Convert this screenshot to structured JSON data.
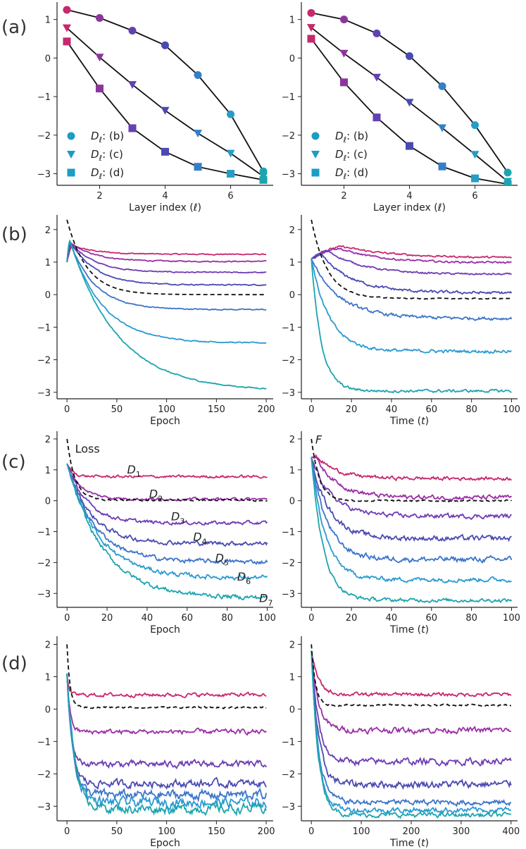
{
  "colors": {
    "D1": "#c8286c",
    "D2": "#9a2ea6",
    "D3": "#6e3cb4",
    "D4": "#4a4ab2",
    "D5": "#3c74c8",
    "D6": "#2a9ad2",
    "D7": "#1ca4b0",
    "loss": "#111111"
  },
  "row_labels": [
    "(a)",
    "(b)",
    "(c)",
    "(d)"
  ],
  "chart_data": [
    {
      "id": "a-left",
      "type": "scatter+line",
      "xlabel": "Layer index (ℓ)",
      "xticks": [
        2,
        4,
        6
      ],
      "xlim": [
        0.7,
        7.3
      ],
      "yticks": [
        1,
        0,
        -1,
        -2,
        -3
      ],
      "ylim": [
        -3.3,
        1.45
      ],
      "legend": {
        "position": "lower-left",
        "entries": [
          "D_ℓ: (b)",
          "D_ℓ: (c)",
          "D_ℓ: (d)"
        ]
      },
      "series": [
        {
          "name": "D_ℓ: (b)",
          "marker": "circle",
          "x": [
            1,
            2,
            3,
            4,
            5,
            6,
            7
          ],
          "y": [
            1.25,
            1.04,
            0.71,
            0.33,
            -0.44,
            -1.46,
            -2.94
          ]
        },
        {
          "name": "D_ℓ: (c)",
          "marker": "triangle",
          "x": [
            1,
            2,
            3,
            4,
            5,
            6,
            7
          ],
          "y": [
            0.78,
            0.02,
            -0.69,
            -1.36,
            -1.95,
            -2.47,
            -3.07
          ]
        },
        {
          "name": "D_ℓ: (d)",
          "marker": "square",
          "x": [
            1,
            2,
            3,
            4,
            5,
            6,
            7
          ],
          "y": [
            0.43,
            -0.79,
            -1.82,
            -2.43,
            -2.82,
            -3.0,
            -3.16
          ]
        }
      ]
    },
    {
      "id": "a-right",
      "type": "scatter+line",
      "xlabel": "Layer index (ℓ)",
      "xticks": [
        2,
        4,
        6
      ],
      "xlim": [
        0.7,
        7.3
      ],
      "yticks": [
        1,
        0,
        -1,
        -2,
        -3
      ],
      "ylim": [
        -3.3,
        1.45
      ],
      "legend": {
        "position": "lower-left",
        "entries": [
          "D_ℓ: (b)",
          "D_ℓ: (c)",
          "D_ℓ: (d)"
        ]
      },
      "series": [
        {
          "name": "D_ℓ: (b)",
          "marker": "circle",
          "x": [
            1,
            2,
            3,
            4,
            5,
            6,
            7
          ],
          "y": [
            1.17,
            1.0,
            0.64,
            0.05,
            -0.73,
            -1.74,
            -2.97
          ]
        },
        {
          "name": "D_ℓ: (c)",
          "marker": "triangle",
          "x": [
            1,
            2,
            3,
            4,
            5,
            6,
            7
          ],
          "y": [
            0.79,
            0.12,
            -0.5,
            -1.15,
            -1.81,
            -2.5,
            -3.2
          ]
        },
        {
          "name": "D_ℓ: (d)",
          "marker": "square",
          "x": [
            1,
            2,
            3,
            4,
            5,
            6,
            7
          ],
          "y": [
            0.5,
            -0.63,
            -1.54,
            -2.28,
            -2.81,
            -3.12,
            -3.27
          ]
        }
      ]
    },
    {
      "id": "b-left",
      "type": "line",
      "xlabel": "Epoch",
      "xticks": [
        0,
        50,
        100,
        150,
        200
      ],
      "xlim": [
        -10,
        207
      ],
      "yticks": [
        2,
        1,
        0,
        -1,
        -2,
        -3
      ],
      "ylim": [
        -3.2,
        2.45
      ],
      "series": [
        {
          "name": "D1",
          "start": 1.0,
          "peak": 1.5,
          "peakx": 6,
          "final": 1.24,
          "tau": 25,
          "noise": 0.012
        },
        {
          "name": "D2",
          "start": 1.0,
          "peak": 1.55,
          "peakx": 5,
          "final": 1.02,
          "tau": 25,
          "noise": 0.012
        },
        {
          "name": "D3",
          "start": 1.0,
          "peak": 1.58,
          "peakx": 4,
          "final": 0.68,
          "tau": 25,
          "noise": 0.012
        },
        {
          "name": "D4",
          "start": 1.0,
          "peak": 1.6,
          "peakx": 4,
          "final": 0.3,
          "tau": 25,
          "noise": 0.012
        },
        {
          "name": "D5",
          "start": 1.0,
          "peak": 1.62,
          "peakx": 3,
          "final": -0.46,
          "tau": 25,
          "noise": 0.012
        },
        {
          "name": "D6",
          "start": 1.0,
          "peak": 1.64,
          "peakx": 3,
          "final": -1.49,
          "tau": 33,
          "noise": 0.012
        },
        {
          "name": "D7",
          "start": 1.0,
          "peak": 1.66,
          "peakx": 3,
          "final": -2.96,
          "tau": 48,
          "noise": 0.012
        },
        {
          "name": "Loss",
          "dashed": true,
          "start": 2.3,
          "final": 0.0,
          "tau": 20,
          "noise": 0.0
        }
      ]
    },
    {
      "id": "b-right",
      "type": "line",
      "xlabel": "Time (t)",
      "xticks": [
        0,
        20,
        40,
        60,
        80,
        100
      ],
      "xlim": [
        -5,
        103
      ],
      "yticks": [
        2,
        1,
        0,
        -1,
        -2,
        -3
      ],
      "ylim": [
        -3.2,
        2.45
      ],
      "series": [
        {
          "name": "D1",
          "start": 1.1,
          "peak": 1.47,
          "peakx": 16,
          "final": 1.13,
          "tau": 25,
          "noise": 0.02
        },
        {
          "name": "D2",
          "start": 1.1,
          "peak": 1.42,
          "peakx": 14,
          "final": 0.98,
          "tau": 20,
          "noise": 0.02
        },
        {
          "name": "D3",
          "start": 1.1,
          "peak": 1.35,
          "peakx": 8,
          "final": 0.62,
          "tau": 18,
          "noise": 0.02
        },
        {
          "name": "D4",
          "start": 1.1,
          "peak": 1.2,
          "peakx": 5,
          "final": 0.05,
          "tau": 16,
          "noise": 0.03
        },
        {
          "name": "D5",
          "start": 1.1,
          "peak": 1.1,
          "peakx": 0,
          "final": -0.73,
          "tau": 14,
          "noise": 0.035
        },
        {
          "name": "D6",
          "start": 1.1,
          "peak": 1.1,
          "peakx": 0,
          "final": -1.74,
          "tau": 9,
          "noise": 0.035
        },
        {
          "name": "D7",
          "start": 1.1,
          "peak": 1.1,
          "peakx": 0,
          "final": -2.96,
          "tau": 5,
          "noise": 0.03
        },
        {
          "name": "Loss",
          "dashed": true,
          "start": 2.3,
          "final": -0.12,
          "tau": 8,
          "noise": 0.01
        }
      ]
    },
    {
      "id": "c-left",
      "type": "line",
      "xlabel": "Epoch",
      "xticks": [
        0,
        20,
        40,
        60,
        80,
        100
      ],
      "xlim": [
        -5,
        103
      ],
      "yticks": [
        2,
        1,
        0,
        -1,
        -2,
        -3
      ],
      "ylim": [
        -3.45,
        2.25
      ],
      "annotations": [
        {
          "text": "Loss",
          "x": 4,
          "y": 1.55
        },
        {
          "text": "D_1",
          "x": 30,
          "y": 0.88
        },
        {
          "text": "D_2",
          "x": 41,
          "y": 0.1
        },
        {
          "text": "D_3",
          "x": 52,
          "y": -0.63
        },
        {
          "text": "D_4",
          "x": 63,
          "y": -1.3
        },
        {
          "text": "D_5",
          "x": 74,
          "y": -1.98
        },
        {
          "text": "D_6",
          "x": 85,
          "y": -2.58
        },
        {
          "text": "D_7",
          "x": 96,
          "y": -3.28
        }
      ],
      "series": [
        {
          "name": "D1",
          "start": 1.2,
          "final": 0.78,
          "tau": 3,
          "noise": 0.03
        },
        {
          "name": "D2",
          "start": 1.2,
          "final": 0.05,
          "tau": 7,
          "noise": 0.03
        },
        {
          "name": "D3",
          "start": 1.2,
          "final": -0.72,
          "tau": 10,
          "noise": 0.04
        },
        {
          "name": "D4",
          "start": 1.2,
          "final": -1.38,
          "tau": 12,
          "noise": 0.05
        },
        {
          "name": "D5",
          "start": 1.2,
          "final": -1.98,
          "tau": 14,
          "noise": 0.05
        },
        {
          "name": "D6",
          "start": 1.2,
          "final": -2.5,
          "tau": 16,
          "noise": 0.05
        },
        {
          "name": "D7",
          "start": 1.2,
          "final": -3.15,
          "tau": 18,
          "noise": 0.05
        },
        {
          "name": "Loss",
          "dashed": true,
          "start": 2.0,
          "final": 0.02,
          "tau": 4,
          "noise": 0.02
        }
      ]
    },
    {
      "id": "c-right",
      "type": "line",
      "xlabel": "Time (t)",
      "xticks": [
        0,
        20,
        40,
        60,
        80,
        100
      ],
      "xlim": [
        -5,
        103
      ],
      "yticks": [
        2,
        1,
        0,
        -1,
        -2,
        -3
      ],
      "ylim": [
        -3.45,
        2.25
      ],
      "annotations": [
        {
          "text": "F",
          "x": 2,
          "y": 1.85
        }
      ],
      "series": [
        {
          "name": "D1",
          "start": 1.4,
          "peak": 1.42,
          "peakx": 3,
          "final": 0.72,
          "tau": 10,
          "noise": 0.04
        },
        {
          "name": "D2",
          "start": 1.4,
          "peak": 1.42,
          "peakx": 2,
          "final": 0.1,
          "tau": 11,
          "noise": 0.05
        },
        {
          "name": "D3",
          "start": 1.4,
          "final": -0.5,
          "tau": 10,
          "noise": 0.05
        },
        {
          "name": "D4",
          "start": 1.4,
          "final": -1.22,
          "tau": 9,
          "noise": 0.06
        },
        {
          "name": "D5",
          "start": 1.4,
          "final": -1.9,
          "tau": 8,
          "noise": 0.06
        },
        {
          "name": "D6",
          "start": 1.4,
          "final": -2.55,
          "tau": 7,
          "noise": 0.05
        },
        {
          "name": "D7",
          "start": 1.4,
          "final": -3.22,
          "tau": 6,
          "noise": 0.04
        },
        {
          "name": "Loss",
          "dashed": true,
          "start": 2.0,
          "final": 0.0,
          "tau": 4,
          "noise": 0.02
        }
      ]
    },
    {
      "id": "d-left",
      "type": "line",
      "xlabel": "Epoch",
      "xticks": [
        0,
        50,
        100,
        150,
        200
      ],
      "xlim": [
        -10,
        207
      ],
      "yticks": [
        2,
        1,
        0,
        -1,
        -2,
        -3
      ],
      "ylim": [
        -3.45,
        2.25
      ],
      "series": [
        {
          "name": "D1",
          "start": 1.1,
          "final": 0.44,
          "tau": 2,
          "noise": 0.04
        },
        {
          "name": "D2",
          "start": 1.1,
          "final": -0.7,
          "tau": 3,
          "noise": 0.05
        },
        {
          "name": "D3",
          "start": 1.1,
          "final": -1.7,
          "tau": 4,
          "noise": 0.07
        },
        {
          "name": "D4",
          "start": 1.1,
          "final": -2.3,
          "tau": 5,
          "noise": 0.08
        },
        {
          "name": "D5",
          "start": 1.1,
          "final": -2.65,
          "tau": 6,
          "noise": 0.1
        },
        {
          "name": "D6",
          "start": 1.1,
          "final": -2.88,
          "tau": 7,
          "noise": 0.1
        },
        {
          "name": "D7",
          "start": 1.1,
          "final": -3.08,
          "tau": 8,
          "noise": 0.1
        },
        {
          "name": "Loss",
          "dashed": true,
          "start": 2.0,
          "final": 0.05,
          "tau": 3,
          "noise": 0.02
        }
      ]
    },
    {
      "id": "d-right",
      "type": "line",
      "xlabel": "Time (t)",
      "xticks": [
        0,
        100,
        200,
        300,
        400
      ],
      "xlim": [
        -20,
        413
      ],
      "yticks": [
        2,
        1,
        0,
        -1,
        -2,
        -3
      ],
      "ylim": [
        -3.45,
        2.25
      ],
      "series": [
        {
          "name": "D1",
          "start": 1.8,
          "final": 0.45,
          "tau": 14,
          "noise": 0.04
        },
        {
          "name": "D2",
          "start": 1.8,
          "final": -0.65,
          "tau": 14,
          "noise": 0.06
        },
        {
          "name": "D3",
          "start": 1.8,
          "final": -1.62,
          "tau": 14,
          "noise": 0.07
        },
        {
          "name": "D4",
          "start": 1.8,
          "final": -2.32,
          "tau": 14,
          "noise": 0.08
        },
        {
          "name": "D5",
          "start": 1.8,
          "final": -2.88,
          "tau": 14,
          "noise": 0.06
        },
        {
          "name": "D6",
          "start": 1.8,
          "final": -3.12,
          "tau": 14,
          "noise": 0.06
        },
        {
          "name": "D7",
          "start": 1.8,
          "final": -3.27,
          "tau": 14,
          "noise": 0.05
        },
        {
          "name": "Loss",
          "dashed": true,
          "start": 2.0,
          "final": 0.12,
          "tau": 8,
          "noise": 0.02
        }
      ]
    }
  ]
}
